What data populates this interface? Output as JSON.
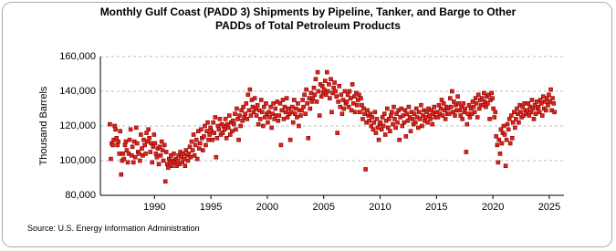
{
  "chart_data": {
    "type": "scatter",
    "title": "Monthly Gulf Coast (PADD 3) Shipments by Pipeline, Tanker, and Barge to Other PADDs of Total Petroleum Products",
    "y_label": "Thousand Barrels",
    "source": "Source: U.S. Energy Information Administration",
    "xlim": [
      1985.2,
      2026.3
    ],
    "xticks": [
      1990,
      1995,
      2000,
      2005,
      2010,
      2015,
      2020,
      2025
    ],
    "ylim": [
      80000,
      160000
    ],
    "yticks": [
      {
        "value": 80000,
        "label": "80,000"
      },
      {
        "value": 100000,
        "label": "100,000"
      },
      {
        "value": 120000,
        "label": "120,000"
      },
      {
        "value": 140000,
        "label": "140,000"
      },
      {
        "value": 160000,
        "label": "160,000"
      }
    ],
    "grid": true,
    "color": "#d9261c",
    "x": [
      1986.04,
      1986.13,
      1986.21,
      1986.29,
      1986.38,
      1986.46,
      1986.54,
      1986.63,
      1986.71,
      1986.79,
      1986.88,
      1986.96,
      1987.04,
      1987.13,
      1987.21,
      1987.29,
      1987.38,
      1987.46,
      1987.54,
      1987.63,
      1987.71,
      1987.79,
      1987.88,
      1987.96,
      1988.04,
      1988.13,
      1988.21,
      1988.29,
      1988.38,
      1988.46,
      1988.54,
      1988.63,
      1988.71,
      1988.79,
      1988.88,
      1988.96,
      1989.04,
      1989.13,
      1989.21,
      1989.29,
      1989.38,
      1989.46,
      1989.54,
      1989.63,
      1989.71,
      1989.79,
      1989.88,
      1989.96,
      1990.04,
      1990.13,
      1990.21,
      1990.29,
      1990.38,
      1990.46,
      1990.54,
      1990.63,
      1990.71,
      1990.79,
      1990.88,
      1990.96,
      1991.04,
      1991.13,
      1991.21,
      1991.29,
      1991.38,
      1991.46,
      1991.54,
      1991.63,
      1991.71,
      1991.79,
      1991.88,
      1991.96,
      1992.04,
      1992.13,
      1992.21,
      1992.29,
      1992.38,
      1992.46,
      1992.54,
      1992.63,
      1992.71,
      1992.79,
      1992.88,
      1992.96,
      1993.04,
      1993.13,
      1993.21,
      1993.29,
      1993.38,
      1993.46,
      1993.54,
      1993.63,
      1993.71,
      1993.79,
      1993.88,
      1993.96,
      1994.04,
      1994.13,
      1994.21,
      1994.29,
      1994.38,
      1994.46,
      1994.54,
      1994.63,
      1994.71,
      1994.79,
      1994.88,
      1994.96,
      1995.04,
      1995.13,
      1995.21,
      1995.29,
      1995.38,
      1995.46,
      1995.54,
      1995.63,
      1995.71,
      1995.79,
      1995.88,
      1995.96,
      1996.04,
      1996.13,
      1996.21,
      1996.29,
      1996.38,
      1996.46,
      1996.54,
      1996.63,
      1996.71,
      1996.79,
      1996.88,
      1996.96,
      1997.04,
      1997.13,
      1997.21,
      1997.29,
      1997.38,
      1997.46,
      1997.54,
      1997.63,
      1997.71,
      1997.79,
      1997.88,
      1997.96,
      1998.04,
      1998.13,
      1998.21,
      1998.29,
      1998.38,
      1998.46,
      1998.54,
      1998.63,
      1998.71,
      1998.79,
      1998.88,
      1998.96,
      1999.04,
      1999.13,
      1999.21,
      1999.29,
      1999.38,
      1999.46,
      1999.54,
      1999.63,
      1999.71,
      1999.79,
      1999.88,
      1999.96,
      2000.04,
      2000.13,
      2000.21,
      2000.29,
      2000.38,
      2000.46,
      2000.54,
      2000.63,
      2000.71,
      2000.79,
      2000.88,
      2000.96,
      2001.04,
      2001.13,
      2001.21,
      2001.29,
      2001.38,
      2001.46,
      2001.54,
      2001.63,
      2001.71,
      2001.79,
      2001.88,
      2001.96,
      2002.04,
      2002.13,
      2002.21,
      2002.29,
      2002.38,
      2002.46,
      2002.54,
      2002.63,
      2002.71,
      2002.79,
      2002.88,
      2002.96,
      2003.04,
      2003.13,
      2003.21,
      2003.29,
      2003.38,
      2003.46,
      2003.54,
      2003.63,
      2003.71,
      2003.79,
      2003.88,
      2003.96,
      2004.04,
      2004.13,
      2004.21,
      2004.29,
      2004.38,
      2004.46,
      2004.54,
      2004.63,
      2004.71,
      2004.79,
      2004.88,
      2004.96,
      2005.04,
      2005.13,
      2005.21,
      2005.29,
      2005.38,
      2005.46,
      2005.54,
      2005.63,
      2005.71,
      2005.79,
      2005.88,
      2005.96,
      2006.04,
      2006.13,
      2006.21,
      2006.29,
      2006.38,
      2006.46,
      2006.54,
      2006.63,
      2006.71,
      2006.79,
      2006.88,
      2006.96,
      2007.04,
      2007.13,
      2007.21,
      2007.29,
      2007.38,
      2007.46,
      2007.54,
      2007.63,
      2007.71,
      2007.79,
      2007.88,
      2007.96,
      2008.04,
      2008.13,
      2008.21,
      2008.29,
      2008.38,
      2008.46,
      2008.54,
      2008.63,
      2008.71,
      2008.79,
      2008.88,
      2008.96,
      2009.04,
      2009.13,
      2009.21,
      2009.29,
      2009.38,
      2009.46,
      2009.54,
      2009.63,
      2009.71,
      2009.79,
      2009.88,
      2009.96,
      2010.04,
      2010.13,
      2010.21,
      2010.29,
      2010.38,
      2010.46,
      2010.54,
      2010.63,
      2010.71,
      2010.79,
      2010.88,
      2010.96,
      2011.04,
      2011.13,
      2011.21,
      2011.29,
      2011.38,
      2011.46,
      2011.54,
      2011.63,
      2011.71,
      2011.79,
      2011.88,
      2011.96,
      2012.04,
      2012.13,
      2012.21,
      2012.29,
      2012.38,
      2012.46,
      2012.54,
      2012.63,
      2012.71,
      2012.79,
      2012.88,
      2012.96,
      2013.04,
      2013.13,
      2013.21,
      2013.29,
      2013.38,
      2013.46,
      2013.54,
      2013.63,
      2013.71,
      2013.79,
      2013.88,
      2013.96,
      2014.04,
      2014.13,
      2014.21,
      2014.29,
      2014.38,
      2014.46,
      2014.54,
      2014.63,
      2014.71,
      2014.79,
      2014.88,
      2014.96,
      2015.04,
      2015.13,
      2015.21,
      2015.29,
      2015.38,
      2015.46,
      2015.54,
      2015.63,
      2015.71,
      2015.79,
      2015.88,
      2015.96,
      2016.04,
      2016.13,
      2016.21,
      2016.29,
      2016.38,
      2016.46,
      2016.54,
      2016.63,
      2016.71,
      2016.79,
      2016.88,
      2016.96,
      2017.04,
      2017.13,
      2017.21,
      2017.29,
      2017.38,
      2017.46,
      2017.54,
      2017.63,
      2017.71,
      2017.79,
      2017.88,
      2017.96,
      2018.04,
      2018.13,
      2018.21,
      2018.29,
      2018.38,
      2018.46,
      2018.54,
      2018.63,
      2018.71,
      2018.79,
      2018.88,
      2018.96,
      2019.04,
      2019.13,
      2019.21,
      2019.29,
      2019.38,
      2019.46,
      2019.54,
      2019.63,
      2019.71,
      2019.79,
      2019.88,
      2019.96,
      2020.04,
      2020.13,
      2020.21,
      2020.29,
      2020.38,
      2020.46,
      2020.54,
      2020.63,
      2020.71,
      2020.79,
      2020.88,
      2020.96,
      2021.04,
      2021.13,
      2021.21,
      2021.29,
      2021.38,
      2021.46,
      2021.54,
      2021.63,
      2021.71,
      2021.79,
      2021.88,
      2021.96,
      2022.04,
      2022.13,
      2022.21,
      2022.29,
      2022.38,
      2022.46,
      2022.54,
      2022.63,
      2022.71,
      2022.79,
      2022.88,
      2022.96,
      2023.04,
      2023.13,
      2023.21,
      2023.29,
      2023.38,
      2023.46,
      2023.54,
      2023.63,
      2023.71,
      2023.79,
      2023.88,
      2023.96,
      2024.04,
      2024.13,
      2024.21,
      2024.29,
      2024.38,
      2024.46,
      2024.54,
      2024.63,
      2024.71,
      2024.79,
      2024.88,
      2024.96,
      2025.04,
      2025.13,
      2025.21,
      2025.29,
      2025.38,
      2025.46
    ],
    "values": [
      121000,
      101000,
      110000,
      109000,
      112000,
      120000,
      118000,
      113000,
      109000,
      111000,
      104000,
      117000,
      92000,
      100000,
      104000,
      101000,
      109000,
      111000,
      106000,
      99000,
      104000,
      112000,
      118000,
      103000,
      108000,
      99000,
      111000,
      102000,
      119000,
      110000,
      105000,
      104000,
      100000,
      115000,
      107000,
      103000,
      112000,
      109000,
      104000,
      116000,
      111000,
      118000,
      113000,
      105000,
      110000,
      99000,
      108000,
      115000,
      110000,
      104000,
      102000,
      107000,
      98000,
      108000,
      103000,
      111000,
      106000,
      100000,
      109000,
      88000,
      105000,
      98000,
      96000,
      101000,
      99000,
      103000,
      97000,
      100000,
      104000,
      99000,
      101000,
      97000,
      100000,
      103000,
      98000,
      105000,
      102000,
      99000,
      104000,
      101000,
      97000,
      106000,
      103000,
      100000,
      104000,
      108000,
      102000,
      111000,
      106000,
      115000,
      103000,
      109000,
      112000,
      101000,
      117000,
      107000,
      110000,
      118000,
      113000,
      106000,
      114000,
      120000,
      109000,
      117000,
      122000,
      112000,
      115000,
      119000,
      117000,
      112000,
      122000,
      116000,
      125000,
      102000,
      113000,
      120000,
      118000,
      124000,
      115000,
      121000,
      116000,
      120000,
      118000,
      124000,
      113000,
      121000,
      119000,
      126000,
      115000,
      122000,
      117000,
      123000,
      121000,
      127000,
      118000,
      130000,
      124000,
      112000,
      126000,
      120000,
      129000,
      123000,
      131000,
      125000,
      127000,
      133000,
      124000,
      138000,
      129000,
      141000,
      126000,
      135000,
      131000,
      128000,
      136000,
      130000,
      126000,
      132000,
      121000,
      129000,
      124000,
      135000,
      128000,
      120000,
      131000,
      125000,
      133000,
      127000,
      122000,
      128000,
      125000,
      131000,
      119000,
      127000,
      133000,
      124000,
      130000,
      126000,
      134000,
      123000,
      126000,
      133000,
      109000,
      129000,
      135000,
      124000,
      131000,
      128000,
      136000,
      125000,
      130000,
      127000,
      112000,
      128000,
      131000,
      122000,
      135000,
      127000,
      130000,
      125000,
      133000,
      120000,
      129000,
      126000,
      129000,
      135000,
      131000,
      138000,
      127000,
      141000,
      133000,
      113000,
      136000,
      130000,
      139000,
      134000,
      136000,
      142000,
      138000,
      147000,
      134000,
      151000,
      140000,
      126000,
      144000,
      137000,
      143000,
      139000,
      141000,
      146000,
      138000,
      151000,
      140000,
      144000,
      136000,
      147000,
      128000,
      139000,
      142000,
      145000,
      140000,
      137000,
      116000,
      134000,
      143000,
      131000,
      138000,
      127000,
      135000,
      130000,
      140000,
      133000,
      134000,
      138000,
      131000,
      140000,
      136000,
      129000,
      144000,
      133000,
      137000,
      128000,
      139000,
      132000,
      135000,
      138000,
      128000,
      136000,
      132000,
      124000,
      130000,
      127000,
      95000,
      122000,
      129000,
      126000,
      123000,
      127000,
      120000,
      125000,
      118000,
      122000,
      128000,
      116000,
      124000,
      119000,
      112000,
      121000,
      122000,
      118000,
      125000,
      120000,
      127000,
      115000,
      123000,
      130000,
      119000,
      124000,
      117000,
      126000,
      128000,
      121000,
      131000,
      124000,
      119000,
      127000,
      122000,
      129000,
      112000,
      125000,
      130000,
      120000,
      126000,
      122000,
      129000,
      114000,
      127000,
      123000,
      131000,
      125000,
      117000,
      128000,
      124000,
      121000,
      127000,
      122000,
      130000,
      125000,
      119000,
      128000,
      124000,
      132000,
      120000,
      126000,
      129000,
      123000,
      125000,
      128000,
      122000,
      130000,
      126000,
      124000,
      129000,
      121000,
      127000,
      131000,
      125000,
      128000,
      128000,
      125000,
      132000,
      127000,
      130000,
      135000,
      126000,
      133000,
      129000,
      124000,
      131000,
      127000,
      130000,
      127000,
      136000,
      131000,
      140000,
      128000,
      134000,
      126000,
      132000,
      129000,
      137000,
      133000,
      129000,
      126000,
      131000,
      124000,
      133000,
      128000,
      130000,
      105000,
      121000,
      127000,
      132000,
      125000,
      130000,
      127000,
      134000,
      131000,
      128000,
      136000,
      133000,
      125000,
      138000,
      130000,
      135000,
      132000,
      136000,
      132000,
      139000,
      134000,
      131000,
      137000,
      133000,
      138000,
      124000,
      135000,
      139000,
      136000,
      130000,
      125000,
      128000,
      114000,
      109000,
      99000,
      112000,
      104000,
      118000,
      110000,
      116000,
      120000,
      115000,
      97000,
      112000,
      121000,
      118000,
      124000,
      110000,
      126000,
      113000,
      122000,
      128000,
      119000,
      124000,
      130000,
      127000,
      122000,
      132000,
      128000,
      125000,
      131000,
      126000,
      133000,
      129000,
      127000,
      129000,
      133000,
      126000,
      131000,
      128000,
      135000,
      130000,
      124000,
      132000,
      127000,
      134000,
      130000,
      131000,
      128000,
      135000,
      133000,
      126000,
      137000,
      130000,
      134000,
      129000,
      136000,
      132000,
      138000,
      134000,
      141000,
      129000,
      136000,
      133000,
      128000
    ]
  }
}
